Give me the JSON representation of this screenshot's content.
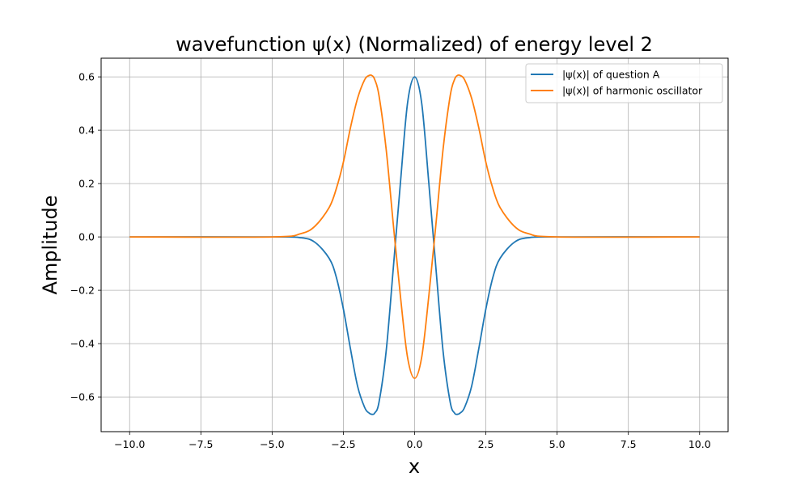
{
  "chart_data": {
    "type": "line",
    "title": "wavefunction ψ(x) (Normalized) of energy level 2",
    "xlabel": "x",
    "ylabel": "Amplitude",
    "xlim": [
      -11.0,
      11.0
    ],
    "ylim": [
      -0.73,
      0.67
    ],
    "xticks": [
      -10.0,
      -7.5,
      -5.0,
      -2.5,
      0.0,
      2.5,
      5.0,
      7.5,
      10.0
    ],
    "xtick_labels": [
      "−10.0",
      "−7.5",
      "−5.0",
      "−2.5",
      "0.0",
      "2.5",
      "5.0",
      "7.5",
      "10.0"
    ],
    "yticks": [
      -0.6,
      -0.4,
      -0.2,
      0.0,
      0.2,
      0.4,
      0.6
    ],
    "ytick_labels": [
      "−0.6",
      "−0.4",
      "−0.2",
      "0.0",
      "0.2",
      "0.4",
      "0.6"
    ],
    "grid": true,
    "legend_position": "top-right",
    "x": [
      -10.0,
      -5.0,
      -4.0,
      -3.5,
      -3.0,
      -2.75,
      -2.5,
      -2.25,
      -2.0,
      -1.75,
      -1.6,
      -1.5,
      -1.4,
      -1.25,
      -1.0,
      -0.75,
      -0.5,
      -0.25,
      0.0,
      0.25,
      0.5,
      0.75,
      1.0,
      1.25,
      1.4,
      1.5,
      1.6,
      1.75,
      2.0,
      2.25,
      2.5,
      2.75,
      3.0,
      3.5,
      4.0,
      5.0,
      10.0
    ],
    "series": [
      {
        "name": "|ψ(x)| of question A",
        "color": "#1f77b4",
        "values": [
          0.0,
          0.0,
          -0.003,
          -0.02,
          -0.08,
          -0.15,
          -0.27,
          -0.42,
          -0.56,
          -0.64,
          -0.66,
          -0.665,
          -0.66,
          -0.62,
          -0.43,
          -0.12,
          0.2,
          0.5,
          0.6,
          0.5,
          0.2,
          -0.12,
          -0.43,
          -0.62,
          -0.66,
          -0.665,
          -0.66,
          -0.64,
          -0.56,
          -0.42,
          -0.27,
          -0.15,
          -0.08,
          -0.02,
          -0.003,
          0.0,
          0.0
        ]
      },
      {
        "name": "|ψ(x)| of harmonic oscillator",
        "color": "#ff7f0e",
        "values": [
          0.0,
          0.0,
          0.012,
          0.04,
          0.11,
          0.18,
          0.28,
          0.41,
          0.52,
          0.59,
          0.605,
          0.605,
          0.59,
          0.53,
          0.33,
          0.05,
          -0.22,
          -0.45,
          -0.53,
          -0.45,
          -0.22,
          0.05,
          0.33,
          0.53,
          0.59,
          0.605,
          0.605,
          0.59,
          0.52,
          0.41,
          0.28,
          0.18,
          0.11,
          0.04,
          0.012,
          0.0,
          0.0
        ]
      }
    ]
  }
}
